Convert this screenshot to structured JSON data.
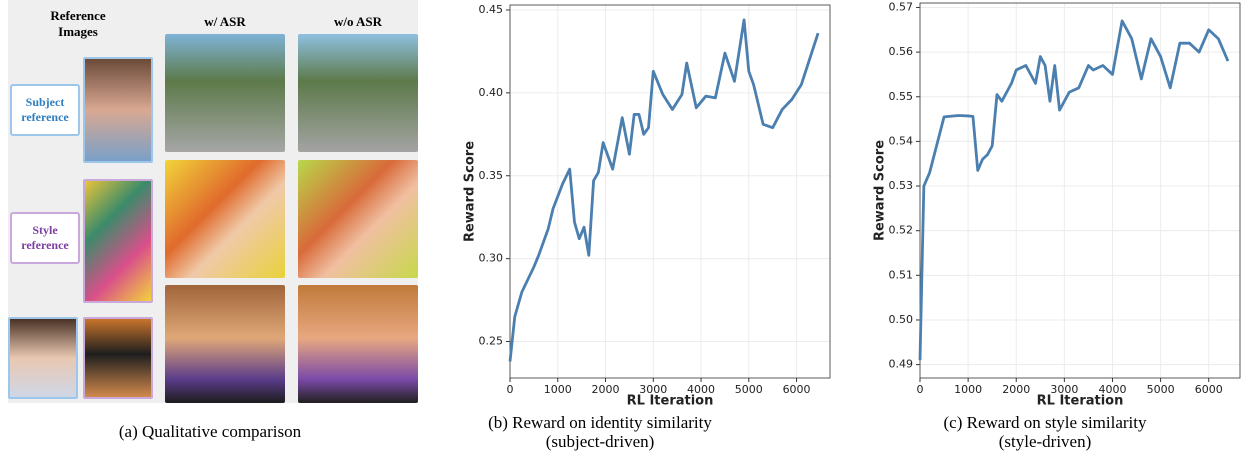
{
  "panel_a": {
    "header_reference": "Reference Images",
    "header_with": "w/ ASR",
    "header_without": "w/o ASR",
    "subject_label": "Subject reference",
    "style_label": "Style reference",
    "caption": "(a)  Qualitative comparison"
  },
  "chart_data": [
    {
      "type": "line",
      "caption": "(b) Reward on identity similarity (subject-driven)",
      "xlabel": "RL Iteration",
      "ylabel": "Reward Score",
      "x": [
        0,
        100,
        250,
        500,
        600,
        800,
        900,
        1100,
        1250,
        1350,
        1450,
        1550,
        1650,
        1750,
        1850,
        1950,
        2150,
        2350,
        2500,
        2600,
        2700,
        2800,
        2900,
        3000,
        3200,
        3400,
        3600,
        3700,
        3900,
        4100,
        4300,
        4500,
        4700,
        4900,
        5000,
        5100,
        5300,
        5500,
        5700,
        5900,
        6100,
        6450
      ],
      "series": [
        {
          "color": "#4a7fb0",
          "values": [
            0.238,
            0.265,
            0.28,
            0.295,
            0.302,
            0.318,
            0.33,
            0.345,
            0.354,
            0.322,
            0.312,
            0.319,
            0.302,
            0.347,
            0.352,
            0.37,
            0.354,
            0.385,
            0.363,
            0.387,
            0.387,
            0.375,
            0.379,
            0.413,
            0.399,
            0.39,
            0.399,
            0.418,
            0.391,
            0.398,
            0.397,
            0.424,
            0.407,
            0.444,
            0.413,
            0.405,
            0.381,
            0.379,
            0.39,
            0.396,
            0.405,
            0.436
          ]
        }
      ],
      "xlim": [
        0,
        6700
      ],
      "ylim": [
        0.228,
        0.453
      ],
      "xticks": [
        0,
        1000,
        2000,
        3000,
        4000,
        5000,
        6000
      ],
      "yticks": [
        0.25,
        {
          "value": 0.3,
          "label": "0.30"
        },
        0.35,
        {
          "value": 0.4,
          "label": "0.40"
        },
        0.45
      ],
      "grid": true
    },
    {
      "type": "line",
      "caption": "(c) Reward on style similarity (style-driven)",
      "xlabel": "RL Iteration",
      "ylabel": "Reward Score",
      "x": [
        0,
        80,
        200,
        500,
        800,
        1000,
        1100,
        1200,
        1300,
        1400,
        1500,
        1600,
        1700,
        1900,
        2000,
        2200,
        2400,
        2500,
        2600,
        2700,
        2800,
        2900,
        3100,
        3300,
        3500,
        3600,
        3800,
        4000,
        4200,
        4400,
        4600,
        4800,
        5000,
        5200,
        5400,
        5600,
        5800,
        6000,
        6200,
        6400
      ],
      "series": [
        {
          "color": "#4a7fb0",
          "values": [
            0.491,
            0.53,
            0.533,
            0.5455,
            0.5458,
            0.5457,
            0.5456,
            0.5335,
            0.536,
            0.537,
            0.539,
            0.5505,
            0.549,
            0.553,
            0.556,
            0.557,
            0.553,
            0.559,
            0.557,
            0.549,
            0.557,
            0.547,
            0.551,
            0.552,
            0.557,
            0.556,
            0.557,
            0.555,
            0.567,
            0.563,
            0.554,
            0.563,
            0.559,
            0.552,
            0.562,
            0.562,
            0.56,
            0.565,
            0.563,
            0.558
          ]
        }
      ],
      "xlim": [
        0,
        6650
      ],
      "ylim": [
        0.487,
        0.571
      ],
      "xticks": [
        0,
        1000,
        2000,
        3000,
        4000,
        5000,
        6000
      ],
      "yticks": [
        0.49,
        {
          "value": 0.5,
          "label": "0.50"
        },
        0.51,
        0.52,
        0.53,
        0.54,
        0.55,
        0.56,
        0.57
      ],
      "grid": true
    }
  ]
}
